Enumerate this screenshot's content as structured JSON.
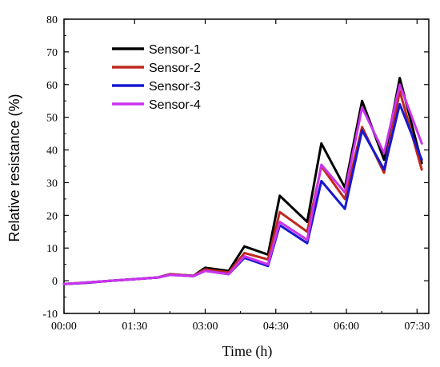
{
  "chart_data": {
    "type": "line",
    "title": "",
    "xlabel": "Time (h)",
    "ylabel": "Relative resistance (%)",
    "xlim": [
      "00:00",
      "07:45"
    ],
    "ylim": [
      -10,
      80
    ],
    "x_ticks": [
      "00:00",
      "01:30",
      "03:00",
      "04:30",
      "06:00",
      "07:30"
    ],
    "y_ticks": [
      -10,
      0,
      10,
      20,
      30,
      40,
      50,
      60,
      70,
      80
    ],
    "grid": false,
    "legend_position": "top-left",
    "x_unit": "time (hh:mm)",
    "series": [
      {
        "name": "Sensor-1",
        "color": "#000000",
        "points": [
          [
            "00:00",
            -1
          ],
          [
            "00:30",
            -0.5
          ],
          [
            "01:00",
            0
          ],
          [
            "01:30",
            0.5
          ],
          [
            "02:00",
            1
          ],
          [
            "02:15",
            2
          ],
          [
            "02:45",
            1.5
          ],
          [
            "03:00",
            4
          ],
          [
            "03:30",
            3
          ],
          [
            "03:50",
            10.5
          ],
          [
            "04:20",
            8
          ],
          [
            "04:35",
            26
          ],
          [
            "05:10",
            18
          ],
          [
            "05:28",
            42
          ],
          [
            "05:58",
            28.5
          ],
          [
            "06:20",
            55
          ],
          [
            "06:48",
            37
          ],
          [
            "07:08",
            62
          ],
          [
            "07:36",
            36
          ]
        ]
      },
      {
        "name": "Sensor-2",
        "color": "#c0281e",
        "points": [
          [
            "00:00",
            -1
          ],
          [
            "00:30",
            -0.6
          ],
          [
            "01:00",
            0
          ],
          [
            "01:30",
            0.5
          ],
          [
            "02:00",
            1
          ],
          [
            "02:15",
            2
          ],
          [
            "02:45",
            1.5
          ],
          [
            "03:00",
            3.5
          ],
          [
            "03:30",
            2.5
          ],
          [
            "03:50",
            8.5
          ],
          [
            "04:20",
            6.5
          ],
          [
            "04:35",
            21
          ],
          [
            "05:10",
            15
          ],
          [
            "05:28",
            35
          ],
          [
            "05:58",
            25
          ],
          [
            "06:20",
            47
          ],
          [
            "06:48",
            33
          ],
          [
            "07:08",
            58
          ],
          [
            "07:36",
            34
          ]
        ]
      },
      {
        "name": "Sensor-3",
        "color": "#1818d0",
        "points": [
          [
            "00:00",
            -1
          ],
          [
            "00:30",
            -0.6
          ],
          [
            "01:00",
            0
          ],
          [
            "01:30",
            0.5
          ],
          [
            "02:00",
            1
          ],
          [
            "02:15",
            1.8
          ],
          [
            "02:45",
            1.4
          ],
          [
            "03:00",
            3
          ],
          [
            "03:30",
            2
          ],
          [
            "03:50",
            7
          ],
          [
            "04:20",
            4.5
          ],
          [
            "04:35",
            17
          ],
          [
            "05:10",
            11.5
          ],
          [
            "05:28",
            30.5
          ],
          [
            "05:58",
            22
          ],
          [
            "06:20",
            46
          ],
          [
            "06:48",
            34
          ],
          [
            "07:08",
            54
          ],
          [
            "07:36",
            37
          ]
        ]
      },
      {
        "name": "Sensor-4",
        "color": "#cc33ee",
        "points": [
          [
            "00:00",
            -1
          ],
          [
            "00:30",
            -0.5
          ],
          [
            "01:00",
            0
          ],
          [
            "01:30",
            0.5
          ],
          [
            "02:00",
            1
          ],
          [
            "02:15",
            1.8
          ],
          [
            "02:45",
            1.4
          ],
          [
            "03:00",
            3
          ],
          [
            "03:30",
            2
          ],
          [
            "03:50",
            7.5
          ],
          [
            "04:20",
            5
          ],
          [
            "04:35",
            18
          ],
          [
            "05:10",
            12.5
          ],
          [
            "05:28",
            35.5
          ],
          [
            "05:58",
            27
          ],
          [
            "06:20",
            53
          ],
          [
            "06:48",
            39
          ],
          [
            "07:08",
            60
          ],
          [
            "07:36",
            42
          ]
        ]
      }
    ]
  }
}
